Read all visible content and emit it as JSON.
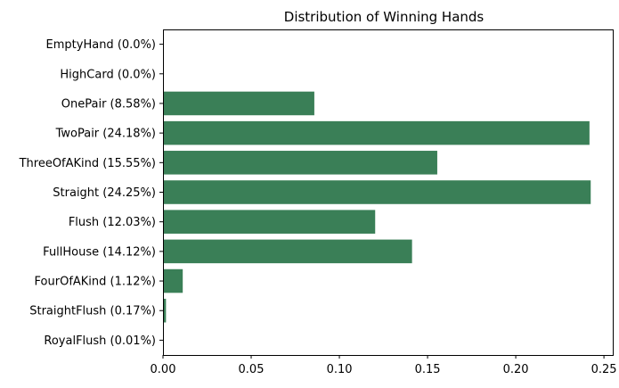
{
  "chart_data": {
    "type": "bar",
    "orientation": "horizontal",
    "title": "Distribution of Winning Hands",
    "xlabel": "",
    "ylabel": "",
    "categories": [
      "EmptyHand (0.0%)",
      "HighCard (0.0%)",
      "OnePair (8.58%)",
      "TwoPair (24.18%)",
      "ThreeOfAKind (15.55%)",
      "Straight (24.25%)",
      "Flush (12.03%)",
      "FullHouse (14.12%)",
      "FourOfAKind (1.12%)",
      "StraightFlush (0.17%)",
      "RoyalFlush (0.01%)"
    ],
    "values": [
      0.0,
      0.0,
      0.0858,
      0.2418,
      0.1555,
      0.2425,
      0.1203,
      0.1412,
      0.0112,
      0.0017,
      0.0001
    ],
    "xlim": [
      0,
      0.255
    ],
    "xticks": [
      0.0,
      0.05,
      0.1,
      0.15,
      0.2,
      0.25
    ],
    "xtick_labels": [
      "0.00",
      "0.05",
      "0.10",
      "0.15",
      "0.20",
      "0.25"
    ],
    "bar_color": "#3a7f57",
    "grid": false,
    "legend": "none"
  }
}
